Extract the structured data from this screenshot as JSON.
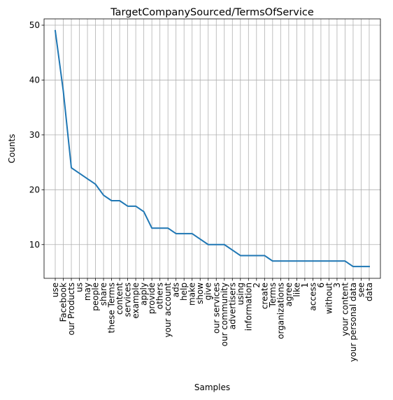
{
  "chart_data": {
    "type": "line",
    "title": "TargetCompanySourced/TermsOfService",
    "xlabel": "Samples",
    "ylabel": "Counts",
    "grid": true,
    "ylim": [
      3.85,
      51.15
    ],
    "yticks": [
      10,
      20,
      30,
      40,
      50
    ],
    "line_color": "#1f77b4",
    "categories": [
      "use",
      "Facebook",
      "our Products",
      "us",
      "may",
      "people",
      "share",
      "these Terms",
      "content",
      "services",
      "example",
      "apply",
      "provide",
      "others",
      "your account",
      "ads",
      "help",
      "make",
      "show",
      "give",
      "our services",
      "our community",
      "advertisers",
      "using",
      "information",
      "2",
      "create",
      "Terms",
      "organizations",
      "agree",
      "like",
      "1",
      "access",
      "6",
      "without",
      "3",
      "your content",
      "your personal data",
      "see",
      "data"
    ],
    "values": [
      49,
      38,
      24,
      23,
      22,
      21,
      19,
      18,
      18,
      17,
      17,
      16,
      13,
      13,
      13,
      12,
      12,
      12,
      11,
      10,
      10,
      10,
      9,
      8,
      8,
      8,
      8,
      7,
      7,
      7,
      7,
      7,
      7,
      7,
      7,
      7,
      7,
      6,
      6,
      6
    ]
  }
}
